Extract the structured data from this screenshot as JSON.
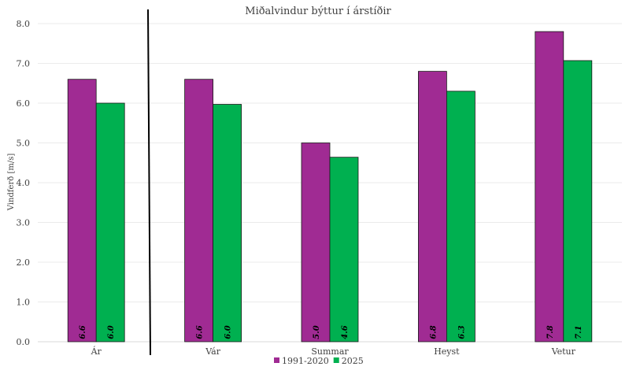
{
  "chart_data": {
    "type": "bar",
    "title": "Miðalvindur býttur í árstíðir",
    "xlabel": "",
    "ylabel": "Vindferð [m/s]",
    "ylim": [
      0,
      8
    ],
    "ytick_step": 1,
    "ytick_labels": [
      "0.0",
      "1.0",
      "2.0",
      "3.0",
      "4.0",
      "5.0",
      "6.0",
      "7.0",
      "8.0"
    ],
    "grid": true,
    "legend_position": "bottom",
    "categories": [
      "Ár",
      "Vár",
      "Summar",
      "Heyst",
      "Vetur"
    ],
    "series": [
      {
        "name": "1991-2020",
        "color": "#a02b93",
        "values": [
          6.6,
          6.6,
          5.0,
          6.8,
          7.8
        ],
        "data_labels": [
          "6.6",
          "6.6",
          "5.0",
          "6.8",
          "7.8"
        ]
      },
      {
        "name": "2025",
        "color": "#00b050",
        "values": [
          6.0,
          5.97,
          4.64,
          6.3,
          7.07
        ],
        "data_labels": [
          "6.0",
          "6.0",
          "4.6",
          "6.3",
          "7.1"
        ]
      }
    ]
  }
}
